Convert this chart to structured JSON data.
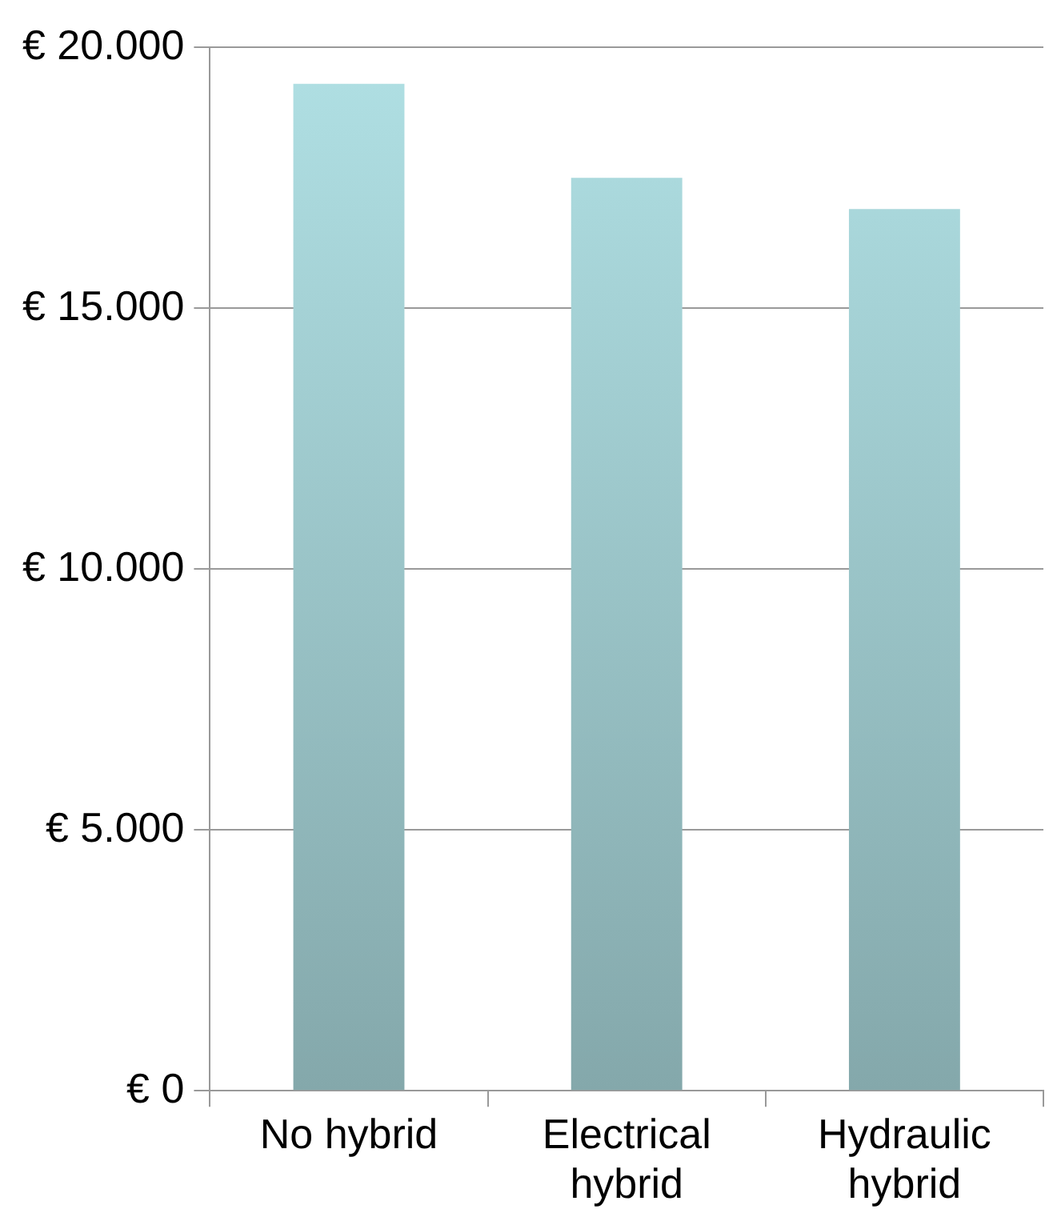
{
  "chart_data": {
    "type": "bar",
    "categories": [
      "No hybrid",
      "Electrical hybrid",
      "Hydraulic hybrid"
    ],
    "values": [
      19300,
      17500,
      16900
    ],
    "color": "#b0e0e4",
    "ylim": [
      0,
      20000
    ],
    "yticks": [
      {
        "value": 0,
        "label": "€ 0"
      },
      {
        "value": 5000,
        "label": "€ 5.000"
      },
      {
        "value": 10000,
        "label": "€ 10.000"
      },
      {
        "value": 15000,
        "label": "€ 15.000"
      },
      {
        "value": 20000,
        "label": "€ 20.000"
      }
    ],
    "grid": "y"
  }
}
